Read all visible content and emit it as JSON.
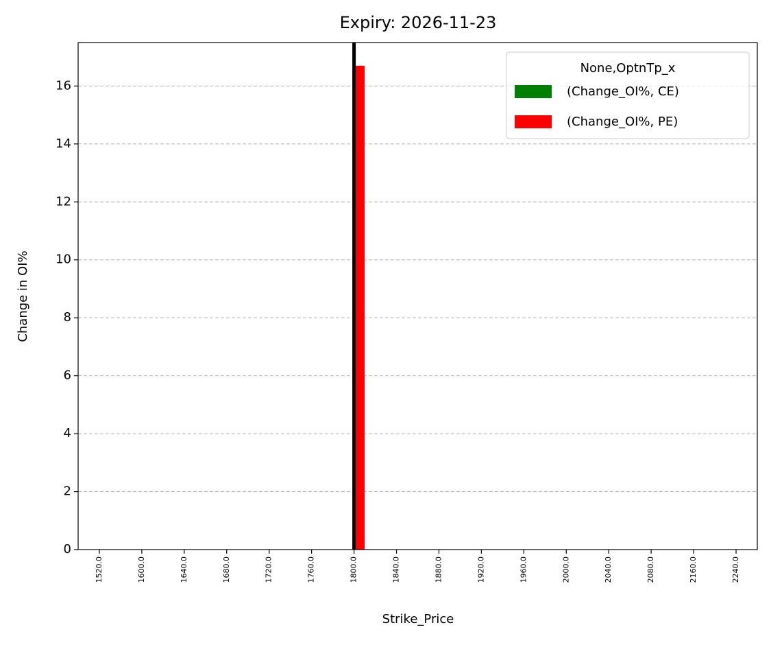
{
  "chart_data": {
    "type": "bar",
    "title": "Expiry: 2026-11-23",
    "x_label": "Strike_Price",
    "y_label": "Change in OI%",
    "categories": [
      "1520.0",
      "1600.0",
      "1640.0",
      "1680.0",
      "1720.0",
      "1760.0",
      "1800.0",
      "1840.0",
      "1880.0",
      "1920.0",
      "1960.0",
      "2000.0",
      "2040.0",
      "2080.0",
      "2160.0",
      "2240.0"
    ],
    "series": [
      {
        "name": "(Change_OI%, CE)",
        "color": "#008000",
        "values": [
          0,
          0,
          0,
          0,
          0,
          0,
          0,
          0,
          0,
          0,
          0,
          0,
          0,
          0,
          0,
          0
        ]
      },
      {
        "name": "(Change_OI%, PE)",
        "color": "#ff0000",
        "values": [
          0,
          0,
          0,
          0,
          0,
          0,
          16.7,
          0,
          0,
          0,
          0,
          0,
          0,
          0,
          0,
          0
        ]
      }
    ],
    "legend_title": "None,OptnTp_x",
    "legend": "upper right",
    "ylim": [
      0,
      17.5
    ],
    "yticks": [
      0,
      2,
      4,
      6,
      8,
      10,
      12,
      14,
      16
    ],
    "grid": true,
    "vline": "1800.0",
    "vline_color": "#000000"
  }
}
